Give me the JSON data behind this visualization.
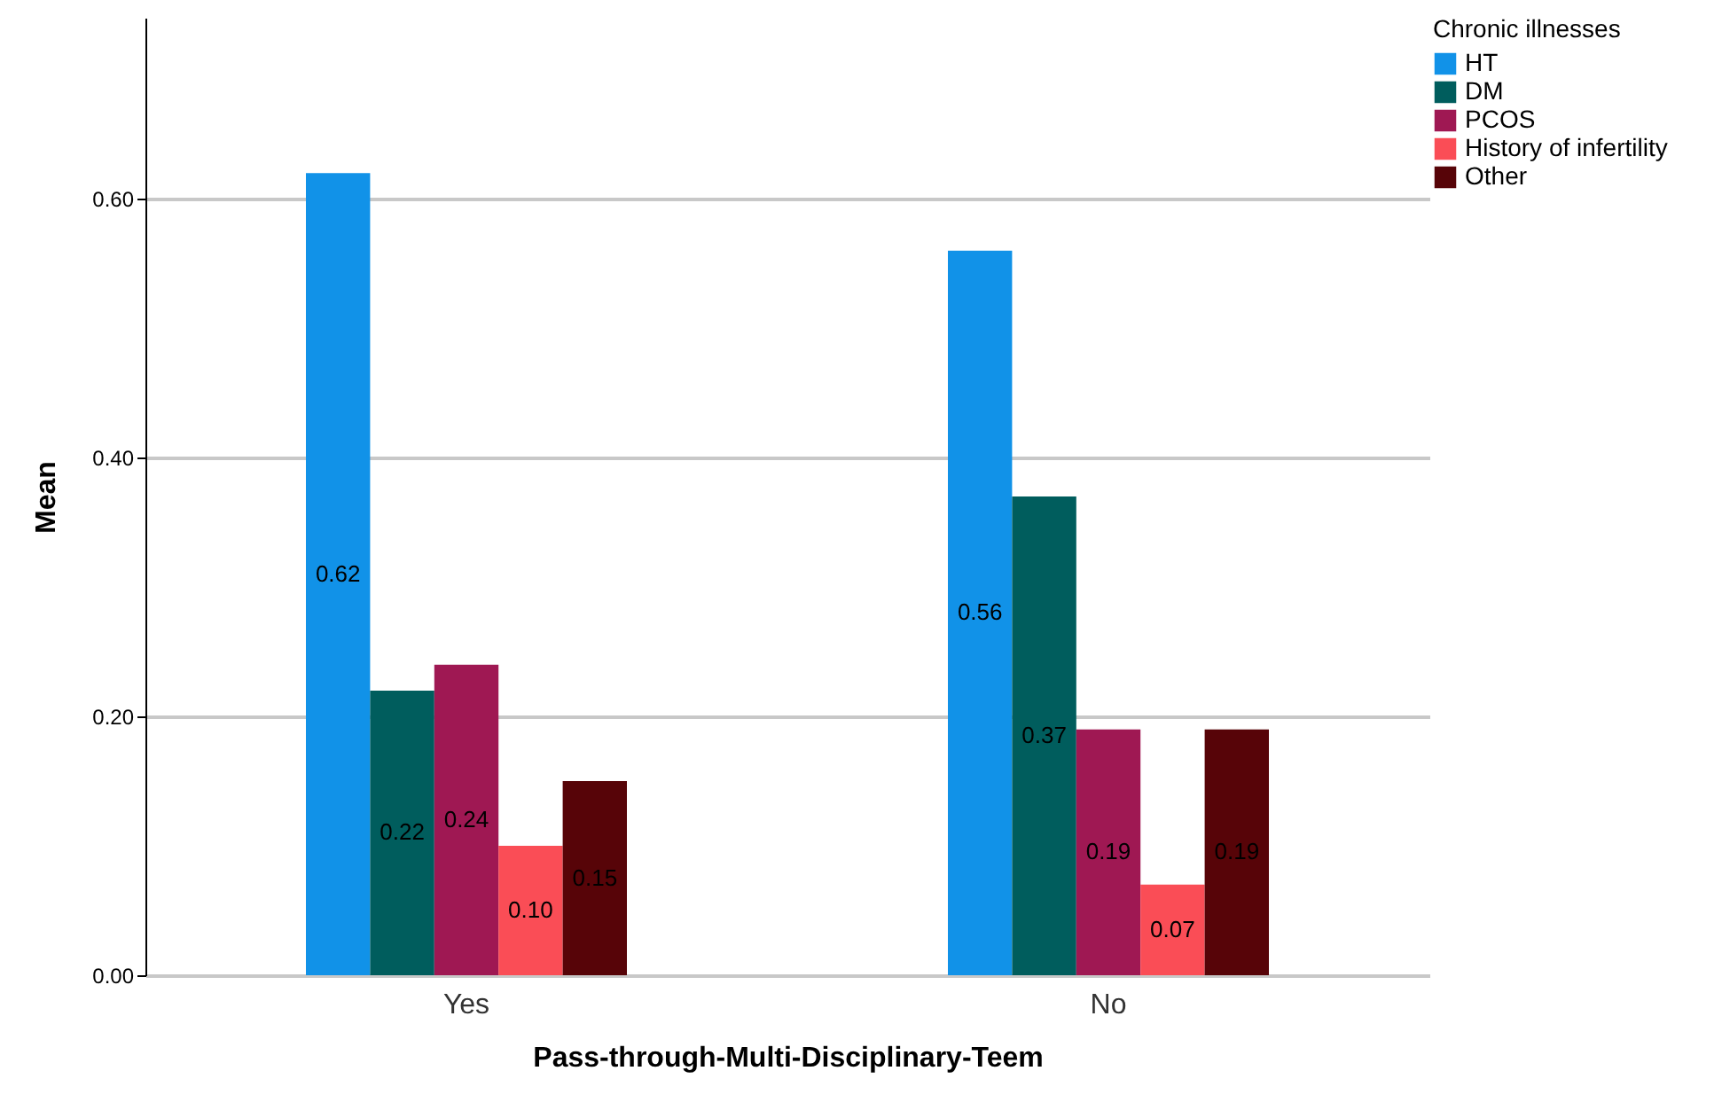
{
  "chart_data": {
    "type": "bar",
    "xlabel": "Pass-through-Multi-Disciplinary-Teem",
    "ylabel": "Mean",
    "legend_title": "Chronic illnesses",
    "categories": [
      "Yes",
      "No"
    ],
    "series": [
      {
        "name": "HT",
        "color": "#1192e8",
        "values": [
          0.62,
          0.56
        ],
        "value_labels": [
          "0.62",
          "0.56"
        ]
      },
      {
        "name": "DM",
        "color": "#005d5d",
        "values": [
          0.22,
          0.37
        ],
        "value_labels": [
          "0.22",
          "0.37"
        ]
      },
      {
        "name": "PCOS",
        "color": "#9f1853",
        "values": [
          0.24,
          0.19
        ],
        "value_labels": [
          "0.24",
          "0.19"
        ]
      },
      {
        "name": "History of infertility",
        "color": "#fa4d56",
        "values": [
          0.1,
          0.07
        ],
        "value_labels": [
          "0.10",
          "0.07"
        ]
      },
      {
        "name": "Other",
        "color": "#570408",
        "values": [
          0.15,
          0.19
        ],
        "value_labels": [
          "0.15",
          "0.19"
        ]
      }
    ],
    "ylim": [
      0,
      0.74
    ],
    "yticks": [
      {
        "value": 0,
        "label": "0.00"
      },
      {
        "value": 0.2,
        "label": "0.20"
      },
      {
        "value": 0.4,
        "label": "0.40"
      },
      {
        "value": 0.6,
        "label": "0.60"
      }
    ],
    "grid": "y",
    "legend": "top right"
  }
}
